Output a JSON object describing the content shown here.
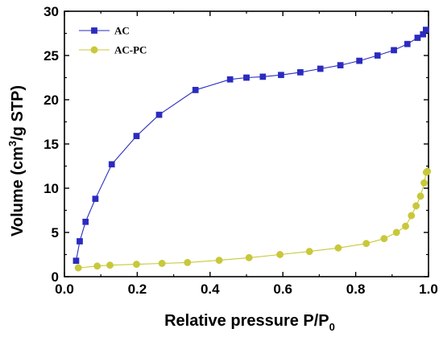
{
  "chart_data": {
    "type": "line",
    "title": "",
    "xlabel": "Relative pressure P/P0",
    "ylabel": "Volume (cm3/g STP)",
    "xlabel_parts": {
      "main": "Relative pressure P/P",
      "sub": "0"
    },
    "ylabel_parts": {
      "pre": "Volume (cm",
      "sup": "3",
      "post": "/g STP)"
    },
    "xlim": [
      0.0,
      1.0
    ],
    "ylim": [
      0,
      30
    ],
    "x_ticks": [
      "0.0",
      "0.2",
      "0.4",
      "0.6",
      "0.8",
      "1.0"
    ],
    "y_ticks": [
      "0",
      "5",
      "10",
      "15",
      "20",
      "25",
      "30"
    ],
    "grid": false,
    "legend_position": "top-left",
    "series": [
      {
        "name": "AC",
        "color": "#2b2bbf",
        "marker": "square",
        "x": [
          0.032,
          0.042,
          0.058,
          0.085,
          0.13,
          0.198,
          0.26,
          0.36,
          0.455,
          0.5,
          0.545,
          0.595,
          0.648,
          0.703,
          0.758,
          0.81,
          0.86,
          0.905,
          0.942,
          0.97,
          0.985,
          0.993
        ],
        "y": [
          1.8,
          4.0,
          6.2,
          8.8,
          12.7,
          15.9,
          18.3,
          21.1,
          22.3,
          22.5,
          22.6,
          22.8,
          23.1,
          23.5,
          23.9,
          24.4,
          25.0,
          25.6,
          26.3,
          27.0,
          27.4,
          27.9
        ]
      },
      {
        "name": "AC-PC",
        "color": "#c8c83a",
        "marker": "circle",
        "x": [
          0.038,
          0.09,
          0.125,
          0.198,
          0.268,
          0.338,
          0.425,
          0.507,
          0.592,
          0.673,
          0.752,
          0.829,
          0.878,
          0.912,
          0.937,
          0.953,
          0.966,
          0.978,
          0.988,
          0.994,
          0.997
        ],
        "y": [
          1.0,
          1.2,
          1.3,
          1.4,
          1.5,
          1.6,
          1.85,
          2.15,
          2.5,
          2.85,
          3.25,
          3.75,
          4.3,
          5.0,
          5.7,
          6.9,
          8.0,
          9.1,
          10.6,
          11.8,
          11.9
        ]
      }
    ]
  }
}
